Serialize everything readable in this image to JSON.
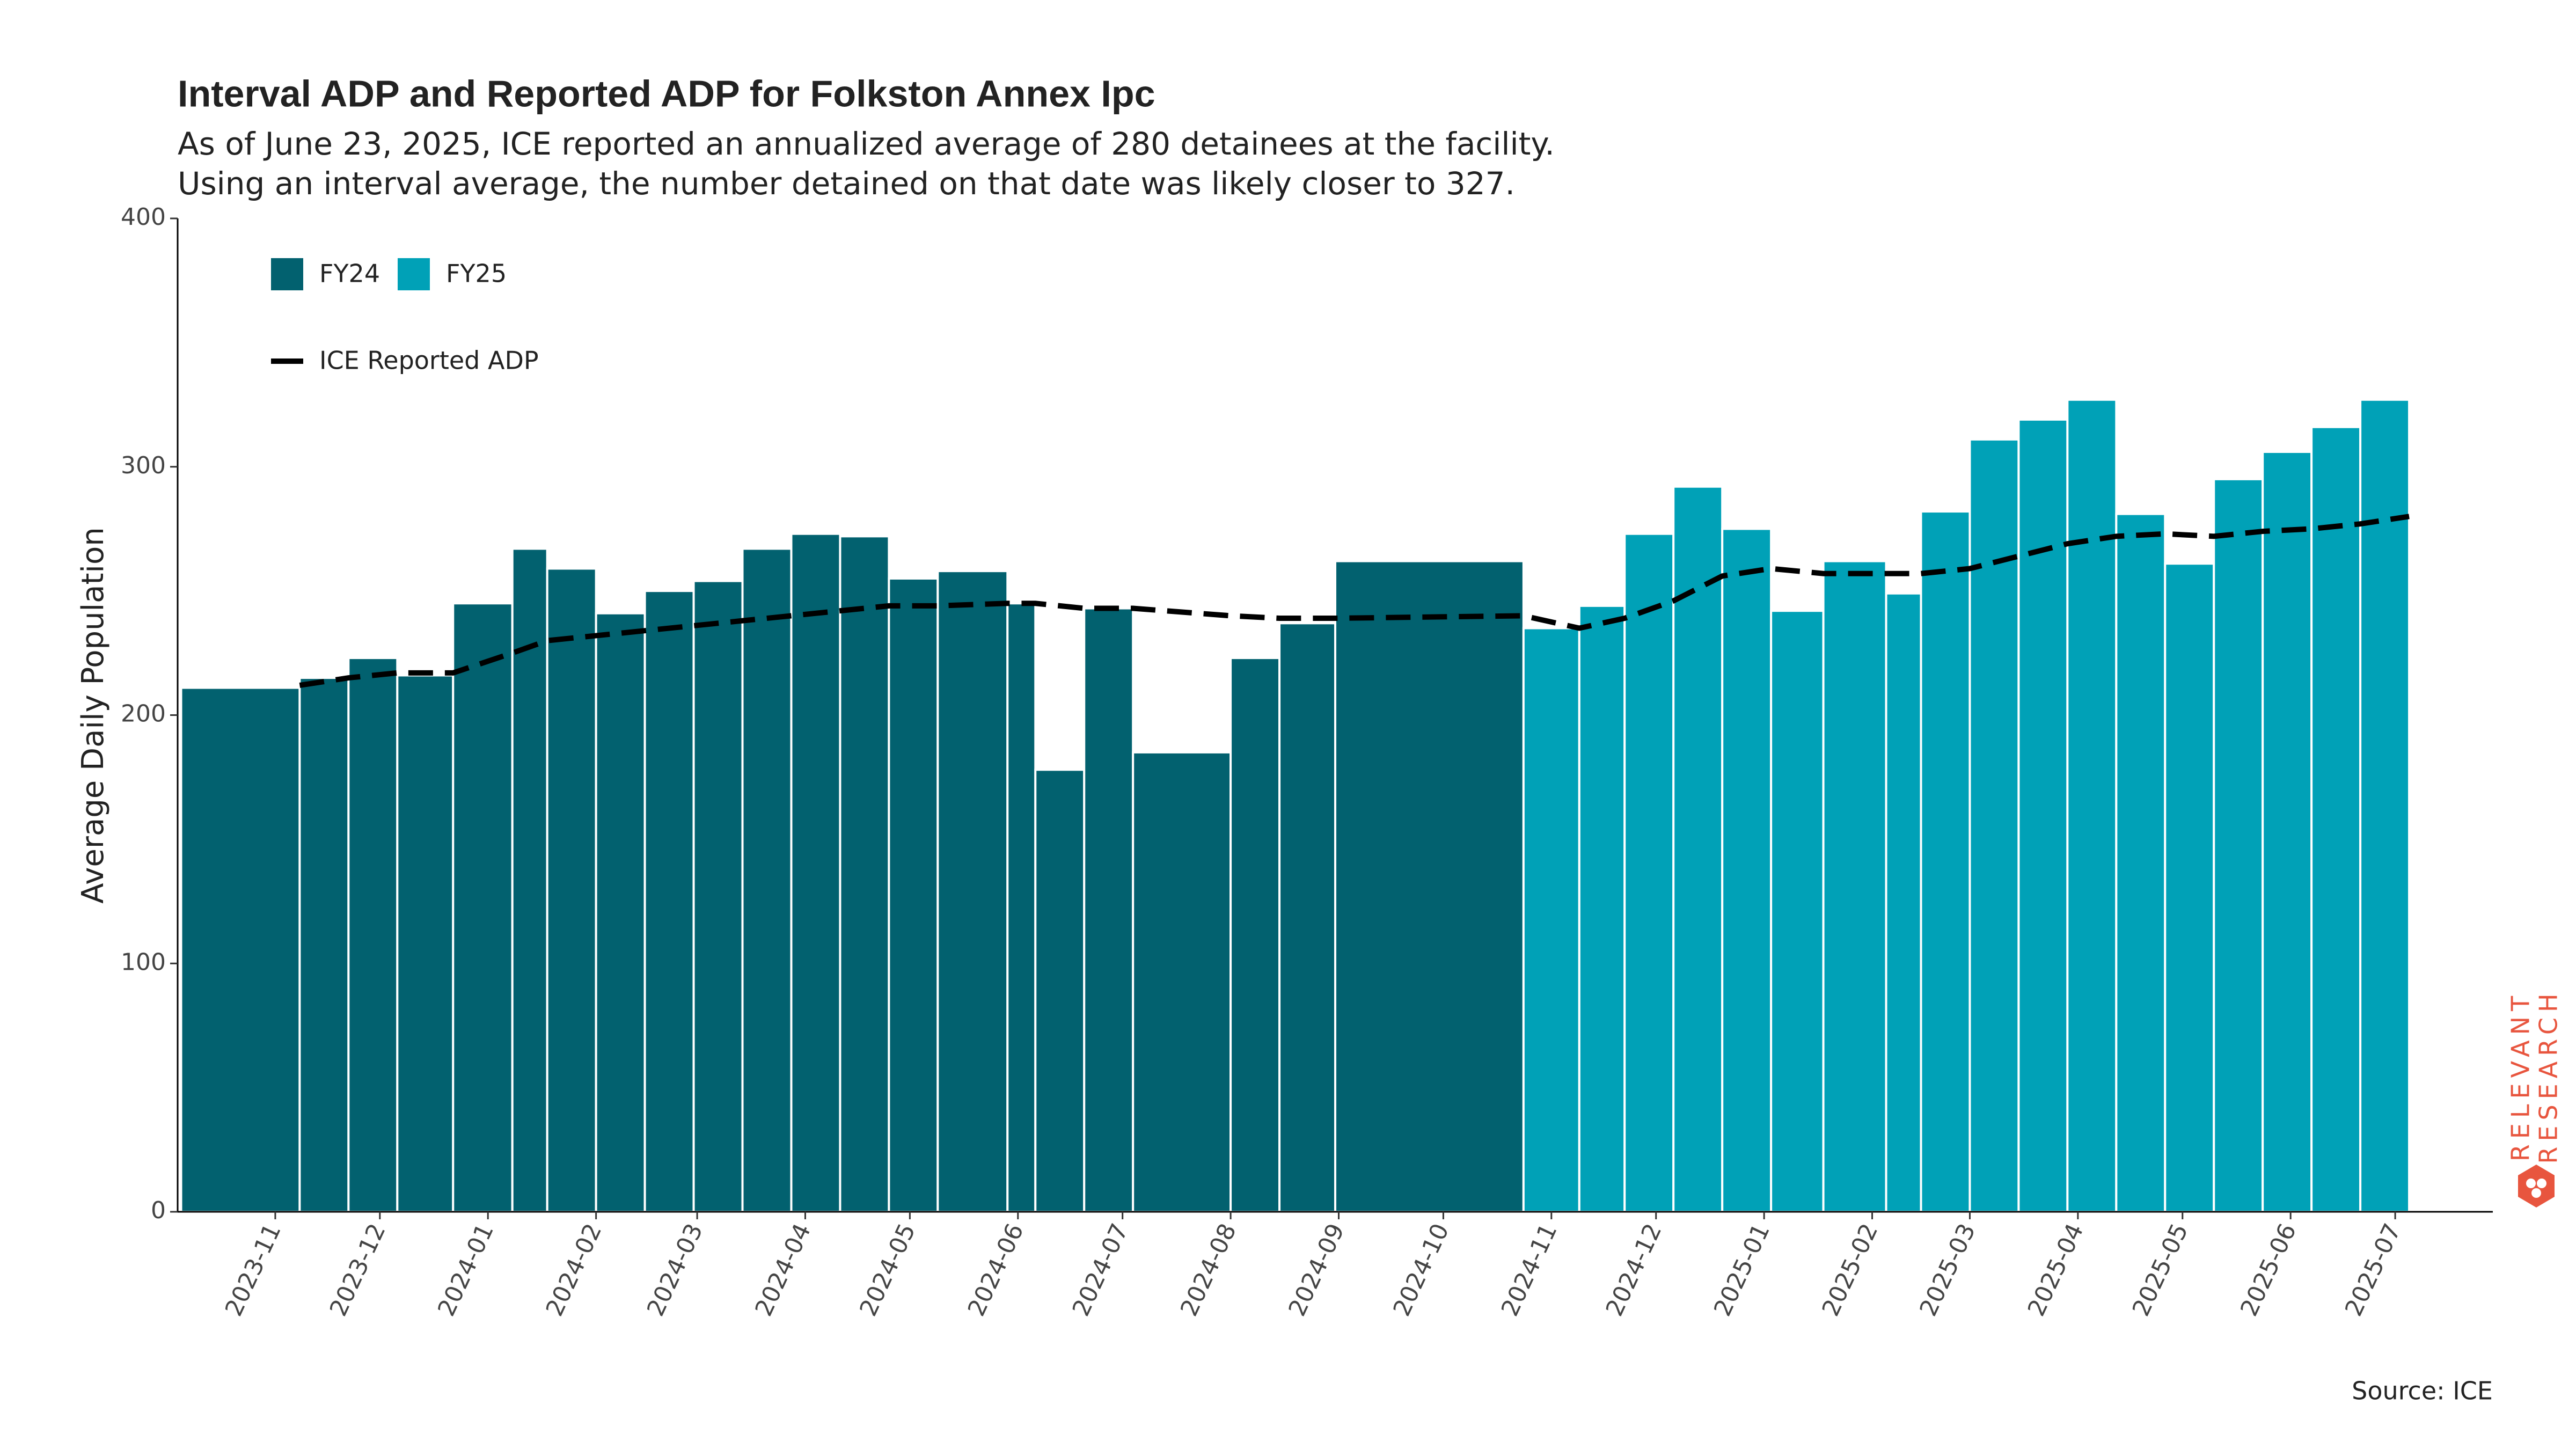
{
  "chart_data": {
    "type": "bar",
    "title": "Interval ADP and Reported ADP for Folkston Annex Ipc",
    "subtitle": [
      "As of June 23, 2025, ICE reported an annualized average of 280 detainees at the facility.",
      "Using an interval average, the number detained on that date was likely closer to 327."
    ],
    "y_label": "Average Daily Population",
    "source": "Source: ICE",
    "logo": [
      "RELEVANT",
      "RESEARCH"
    ],
    "ylim": [
      0,
      400
    ],
    "yticks": [
      0,
      100,
      200,
      300,
      400
    ],
    "xlim": [
      "2023-10-04",
      "2025-07-29"
    ],
    "xticks": [
      {
        "value": "2023-11-01",
        "label": "2023-11"
      },
      {
        "value": "2023-12-01",
        "label": "2023-12"
      },
      {
        "value": "2024-01-01",
        "label": "2024-01"
      },
      {
        "value": "2024-02-01",
        "label": "2024-02"
      },
      {
        "value": "2024-03-01",
        "label": "2024-03"
      },
      {
        "value": "2024-04-01",
        "label": "2024-04"
      },
      {
        "value": "2024-05-01",
        "label": "2024-05"
      },
      {
        "value": "2024-06-01",
        "label": "2024-06"
      },
      {
        "value": "2024-07-01",
        "label": "2024-07"
      },
      {
        "value": "2024-08-01",
        "label": "2024-08"
      },
      {
        "value": "2024-09-01",
        "label": "2024-09"
      },
      {
        "value": "2024-10-01",
        "label": "2024-10"
      },
      {
        "value": "2024-11-01",
        "label": "2024-11"
      },
      {
        "value": "2024-12-01",
        "label": "2024-12"
      },
      {
        "value": "2025-01-01",
        "label": "2025-01"
      },
      {
        "value": "2025-02-01",
        "label": "2025-02"
      },
      {
        "value": "2025-03-01",
        "label": "2025-03"
      },
      {
        "value": "2025-04-01",
        "label": "2025-04"
      },
      {
        "value": "2025-05-01",
        "label": "2025-05"
      },
      {
        "value": "2025-06-01",
        "label": "2025-06"
      },
      {
        "value": "2025-07-01",
        "label": "2025-07"
      }
    ],
    "series": [
      {
        "name": "FY24",
        "color": "#02616f",
        "bins": [
          "2023-10-05",
          "2023-11-08",
          "2023-11-22",
          "2023-12-06",
          "2023-12-22",
          "2024-01-08",
          "2024-01-18",
          "2024-02-01",
          "2024-02-15",
          "2024-02-29",
          "2024-03-14",
          "2024-03-28",
          "2024-04-11",
          "2024-04-25",
          "2024-05-09",
          "2024-05-29",
          "2024-06-06",
          "2024-06-20",
          "2024-07-04",
          "2024-08-01",
          "2024-08-15",
          "2024-08-31",
          "2024-10-24"
        ],
        "values": [
          211,
          215,
          223,
          216,
          245,
          267,
          259,
          241,
          250,
          254,
          267,
          273,
          272,
          255,
          258,
          245,
          178,
          243,
          185,
          223,
          237,
          262
        ]
      },
      {
        "name": "FY25",
        "color": "#00a1b7",
        "bins": [
          "2024-10-24",
          "2024-11-09",
          "2024-11-22",
          "2024-12-06",
          "2024-12-20",
          "2025-01-03",
          "2025-01-18",
          "2025-02-05",
          "2025-02-15",
          "2025-03-01",
          "2025-03-15",
          "2025-03-29",
          "2025-04-12",
          "2025-04-26",
          "2025-05-10",
          "2025-05-24",
          "2025-06-07",
          "2025-06-21",
          "2025-07-05"
        ],
        "values": [
          235,
          244,
          273,
          292,
          275,
          242,
          262,
          249,
          282,
          311,
          319,
          327,
          281,
          261,
          295,
          306,
          316,
          327
        ]
      },
      {
        "name": "ICE Reported ADP",
        "type": "line",
        "color": "#000000",
        "x": [
          "2023-11-08",
          "2023-11-22",
          "2023-12-06",
          "2023-12-22",
          "2024-01-08",
          "2024-01-18",
          "2024-02-01",
          "2024-02-15",
          "2024-02-29",
          "2024-03-14",
          "2024-03-28",
          "2024-04-11",
          "2024-04-25",
          "2024-05-09",
          "2024-05-29",
          "2024-06-06",
          "2024-06-20",
          "2024-07-04",
          "2024-08-01",
          "2024-08-15",
          "2024-08-31",
          "2024-10-24",
          "2024-11-09",
          "2024-11-22",
          "2024-12-06",
          "2024-12-20",
          "2025-01-03",
          "2025-01-18",
          "2025-02-05",
          "2025-02-15",
          "2025-03-01",
          "2025-03-15",
          "2025-03-29",
          "2025-04-12",
          "2025-04-26",
          "2025-05-10",
          "2025-05-24",
          "2025-06-07",
          "2025-06-21",
          "2025-07-05"
        ],
        "values": [
          212,
          215,
          217,
          217,
          225,
          230,
          232,
          234,
          236,
          238,
          240,
          242,
          244,
          244,
          245,
          245,
          243,
          243,
          240,
          239,
          239,
          240,
          235,
          239,
          246,
          256,
          259,
          257,
          257,
          257,
          259,
          264,
          269,
          272,
          273,
          272,
          274,
          275,
          277,
          280
        ]
      }
    ]
  }
}
